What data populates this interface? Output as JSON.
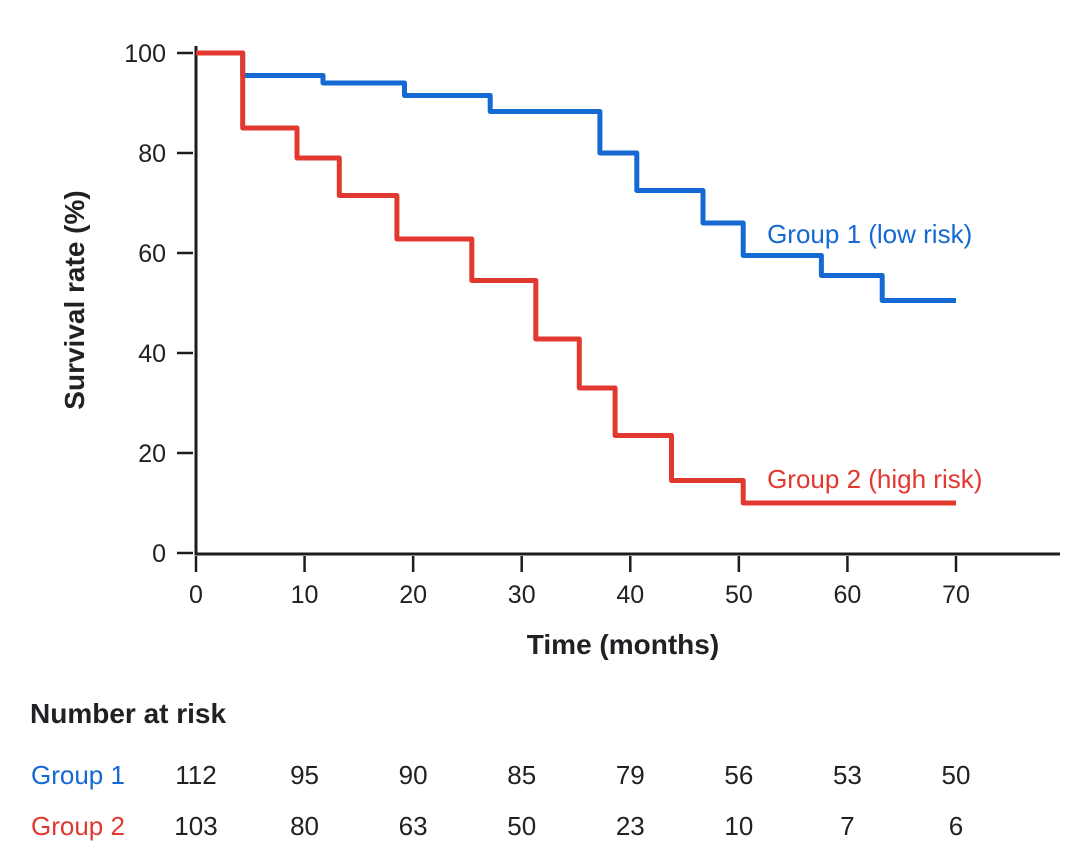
{
  "figure": {
    "background_color": "#ffffff",
    "text_color": "#202124",
    "axis_color": "#1d1d1f"
  },
  "chart_data": {
    "type": "line",
    "subtype": "kaplan_meier_step",
    "title": "",
    "xlabel": "Time (months)",
    "ylabel": "Survival rate (%)",
    "xlim": [
      0,
      79.5
    ],
    "ylim": [
      0,
      100
    ],
    "xticks": [
      0,
      10,
      20,
      30,
      40,
      50,
      60,
      70
    ],
    "yticks": [
      0,
      20,
      40,
      60,
      80,
      100
    ],
    "grid": false,
    "legend_position": "inline-annotations",
    "series": [
      {
        "name": "Group 1 (low risk)",
        "color": "#1469d2",
        "points": [
          [
            0,
            100
          ],
          [
            4.3,
            100
          ],
          [
            4.3,
            95.5
          ],
          [
            11.7,
            95.5
          ],
          [
            11.7,
            94
          ],
          [
            19.2,
            94
          ],
          [
            19.2,
            91.5
          ],
          [
            27.1,
            91.5
          ],
          [
            27.1,
            88.3
          ],
          [
            37.2,
            88.3
          ],
          [
            37.2,
            80
          ],
          [
            40.6,
            80
          ],
          [
            40.6,
            72.5
          ],
          [
            46.7,
            72.5
          ],
          [
            46.7,
            66
          ],
          [
            50.4,
            66
          ],
          [
            50.4,
            59.5
          ],
          [
            57.6,
            59.5
          ],
          [
            57.6,
            55.5
          ],
          [
            63.2,
            55.5
          ],
          [
            63.2,
            50.5
          ],
          [
            70,
            50.5
          ]
        ],
        "annotation": {
          "text": "Group 1 (low risk)",
          "x": 52.6,
          "y": 62.0
        }
      },
      {
        "name": "Group 2 (high risk)",
        "color": "#e13830",
        "points": [
          [
            0,
            100
          ],
          [
            4.3,
            100
          ],
          [
            4.3,
            85
          ],
          [
            9.3,
            85
          ],
          [
            9.3,
            79
          ],
          [
            13.2,
            79
          ],
          [
            13.2,
            71.5
          ],
          [
            18.5,
            71.5
          ],
          [
            18.5,
            62.8
          ],
          [
            25.4,
            62.8
          ],
          [
            25.4,
            54.5
          ],
          [
            31.3,
            54.5
          ],
          [
            31.3,
            42.8
          ],
          [
            35.3,
            42.8
          ],
          [
            35.3,
            33
          ],
          [
            38.6,
            33
          ],
          [
            38.6,
            23.5
          ],
          [
            43.8,
            23.5
          ],
          [
            43.8,
            14.5
          ],
          [
            50.4,
            14.5
          ],
          [
            50.4,
            10
          ],
          [
            70,
            10
          ]
        ],
        "annotation": {
          "text": "Group 2 (high risk)",
          "x": 52.6,
          "y": 13.0
        }
      }
    ]
  },
  "risk_table": {
    "title": "Number at risk",
    "time_points": [
      0,
      10,
      20,
      30,
      40,
      50,
      60,
      70
    ],
    "rows": [
      {
        "label": "Group 1",
        "color": "#1469d2",
        "values": [
          112,
          95,
          90,
          85,
          79,
          56,
          53,
          50
        ]
      },
      {
        "label": "Group 2",
        "color": "#e13830",
        "values": [
          103,
          80,
          63,
          50,
          23,
          10,
          7,
          6
        ]
      }
    ]
  }
}
